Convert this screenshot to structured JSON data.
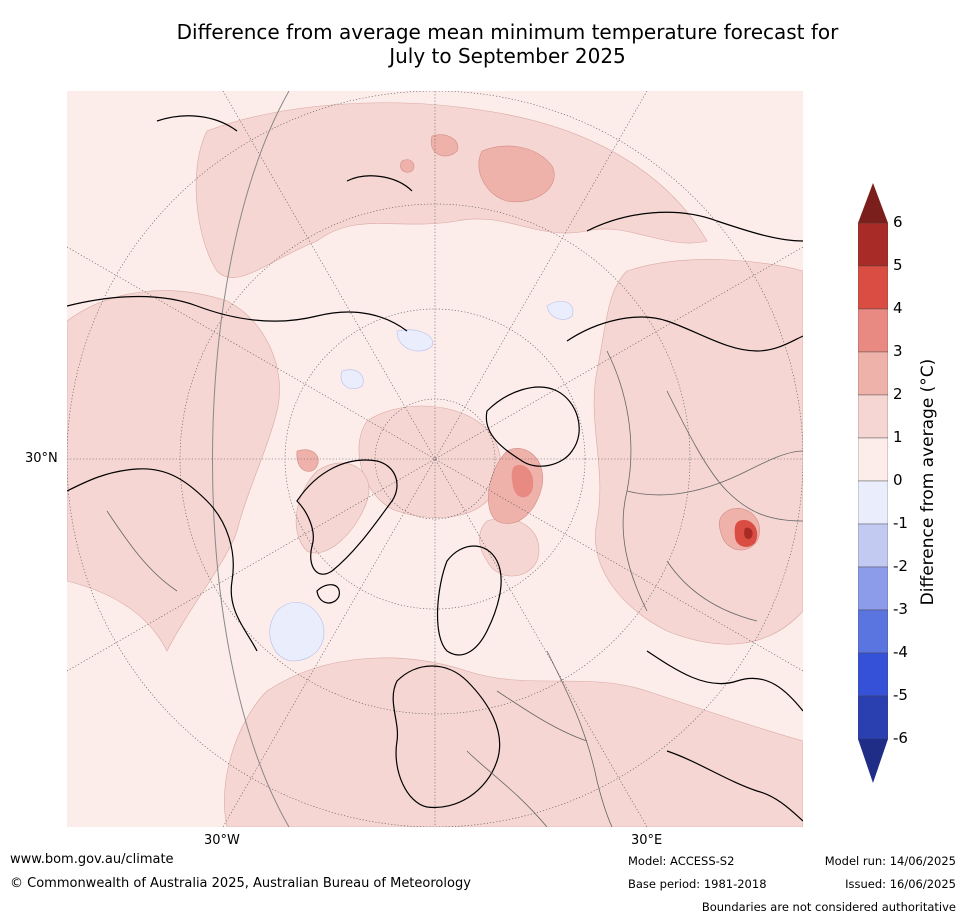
{
  "title": {
    "line1": "Difference from average mean minimum temperature forecast for",
    "line2": "July to September 2025"
  },
  "map": {
    "projection": "north-polar-stereographic",
    "lat_label": "30°N",
    "lon_labels": [
      "30°W",
      "30°E"
    ]
  },
  "colorbar": {
    "title": "Difference from average (°C)",
    "ticks": [
      "6",
      "5",
      "4",
      "3",
      "2",
      "1",
      "0",
      "-1",
      "-2",
      "-3",
      "-4",
      "-5",
      "-6"
    ],
    "colors": {
      "max_extend": "#7a1f1b",
      "5_to_6": "#a92b27",
      "4_to_5": "#d94d43",
      "3_to_4": "#e88a82",
      "2_to_3": "#efb2ab",
      "1_to_2": "#f5d6d2",
      "0_to_1": "#fcecea",
      "-1_to_0": "#eaeefc",
      "-2_to_-1": "#c3caf2",
      "-3_to_-2": "#8c9bea",
      "-4_to_-3": "#5a74e0",
      "-5_to_-4": "#3551d8",
      "-6_to_-5": "#2a3fb0",
      "min_extend": "#1f2d86"
    }
  },
  "footer": {
    "url": "www.bom.gov.au/climate",
    "copyright": "© Commonwealth of Australia 2025, Australian Bureau of Meteorology",
    "model": "Model: ACCESS-S2",
    "base_period": "Base period: 1981-2018",
    "model_run": "Model run: 14/06/2025",
    "issued": "Issued: 16/06/2025",
    "disclaimer": "Boundaries are not considered authoritative"
  }
}
